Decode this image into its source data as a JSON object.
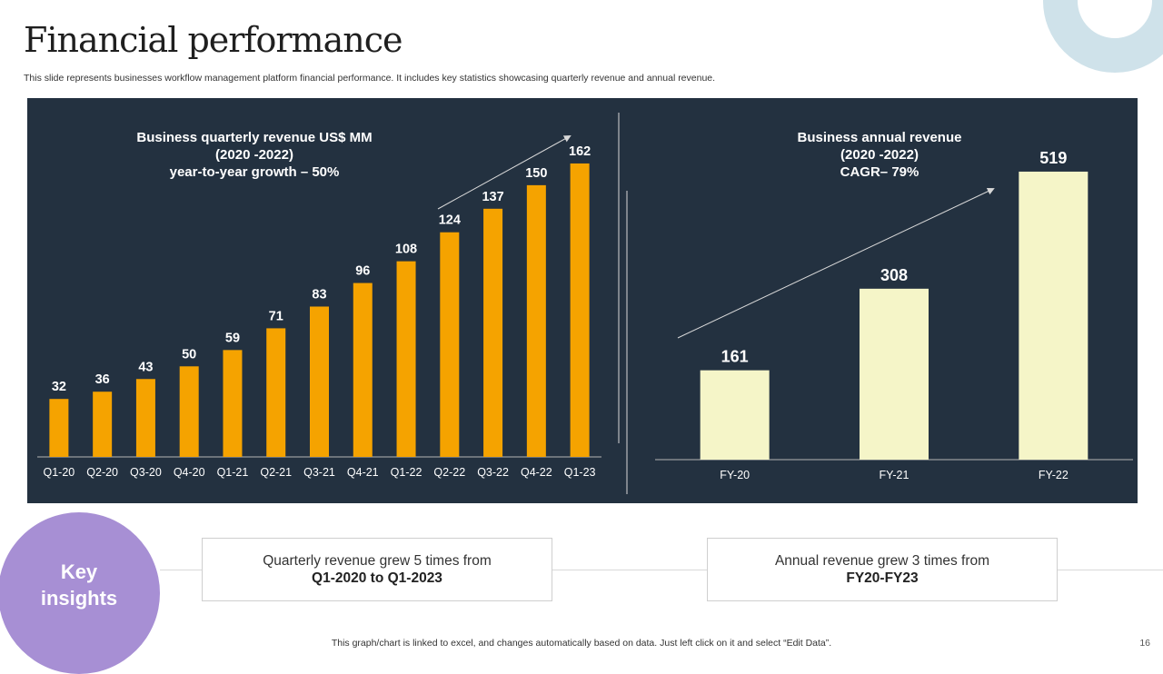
{
  "slide": {
    "title": "Financial performance",
    "subtitle": "This slide represents businesses workflow management platform financial performance. It includes key statistics showcasing quarterly revenue and annual revenue.",
    "footer": "This graph/chart is linked to excel,  and changes automatically based on data. Just left click on it and select “Edit Data”.",
    "page_number": "16"
  },
  "chart_data": [
    {
      "type": "bar",
      "title_lines": [
        "Business quarterly revenue US$ MM",
        "(2020 -2022)",
        "year-to-year growth – 50%"
      ],
      "categories": [
        "Q1-20",
        "Q2-20",
        "Q3-20",
        "Q4-20",
        "Q1-21",
        "Q2-21",
        "Q3-21",
        "Q4-21",
        "Q1-22",
        "Q2-22",
        "Q3-22",
        "Q4-22",
        "Q1-23"
      ],
      "values": [
        32,
        36,
        43,
        50,
        59,
        71,
        83,
        96,
        108,
        124,
        137,
        150,
        162
      ],
      "unit": "US$ MM",
      "ylim": [
        0,
        170
      ],
      "bar_color": "#f5a300",
      "xlabel": "",
      "ylabel": "",
      "grid": false,
      "legend": "none"
    },
    {
      "type": "bar",
      "title_lines": [
        "Business annual revenue",
        "(2020 -2022)",
        "CAGR– 79%"
      ],
      "categories": [
        "FY-20",
        "FY-21",
        "FY-22"
      ],
      "values": [
        161,
        308,
        519
      ],
      "ylim": [
        0,
        550
      ],
      "bar_color": "#f5f5c8",
      "xlabel": "",
      "ylabel": "",
      "grid": false,
      "legend": "none"
    }
  ],
  "insights": {
    "label_line1": "Key",
    "label_line2": "insights",
    "box1_line1": "Quarterly  revenue  grew 5 times from",
    "box1_line2": "Q1-2020 to Q1-2023",
    "box2_line1": "Annual revenue  grew 3 times from",
    "box2_line2": "FY20-FY23"
  },
  "colors": {
    "panel_bg": "#233140",
    "quarterly_bar": "#f5a300",
    "annual_bar": "#f5f5c8",
    "insight_circle": "#a78fd4",
    "deco_ring": "#cfe2ea"
  }
}
